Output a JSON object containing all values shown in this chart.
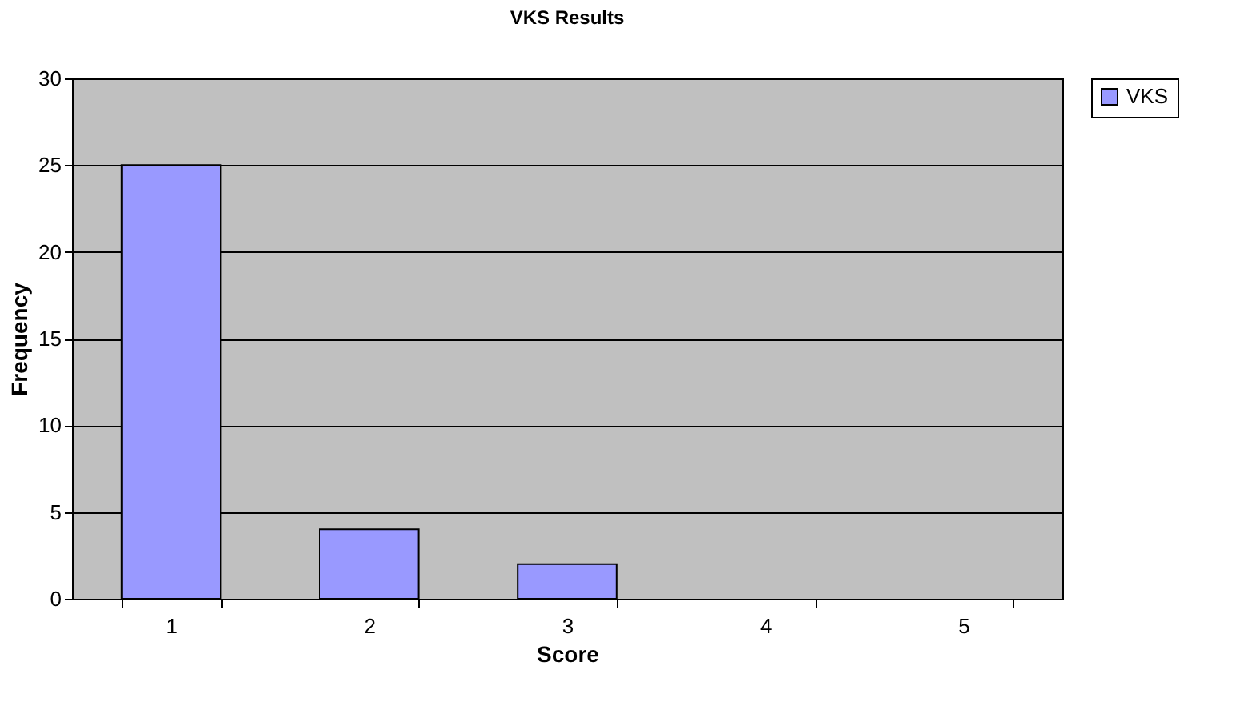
{
  "chart_data": {
    "type": "bar",
    "title": "VKS Results",
    "xlabel": "Score",
    "ylabel": "Frequency",
    "categories": [
      "1",
      "2",
      "3",
      "4",
      "5"
    ],
    "series": [
      {
        "name": "VKS",
        "color": "#9999ff",
        "values": [
          25,
          4,
          2,
          0,
          0
        ]
      }
    ],
    "ylim": [
      0,
      30
    ],
    "yticks": [
      0,
      5,
      10,
      15,
      20,
      25,
      30
    ],
    "grid": "y",
    "legend": "right"
  }
}
